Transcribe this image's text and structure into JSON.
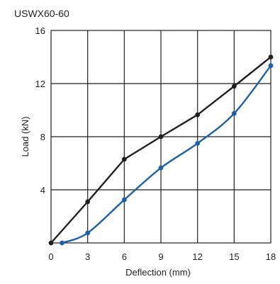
{
  "chart_data": {
    "type": "line",
    "title": "USWX60-60",
    "xlabel": "Deflection (mm)",
    "ylabel": "Load (kN)",
    "xlim": [
      0,
      18
    ],
    "ylim": [
      0,
      16
    ],
    "x_ticks": [
      0,
      3,
      6,
      9,
      12,
      15,
      18
    ],
    "y_ticks": [
      4,
      8,
      12,
      16
    ],
    "grid": true,
    "series": [
      {
        "color": "#231f20",
        "x": [
          0,
          3,
          6,
          9,
          12,
          15,
          18
        ],
        "y": [
          0,
          3.1,
          6.3,
          8.0,
          9.65,
          11.8,
          14.0
        ]
      },
      {
        "color": "#1f5fa8",
        "x": [
          0.9,
          3,
          6,
          9,
          12,
          15,
          18
        ],
        "y": [
          0,
          0.75,
          3.25,
          5.65,
          7.5,
          9.75,
          13.35
        ]
      }
    ]
  }
}
